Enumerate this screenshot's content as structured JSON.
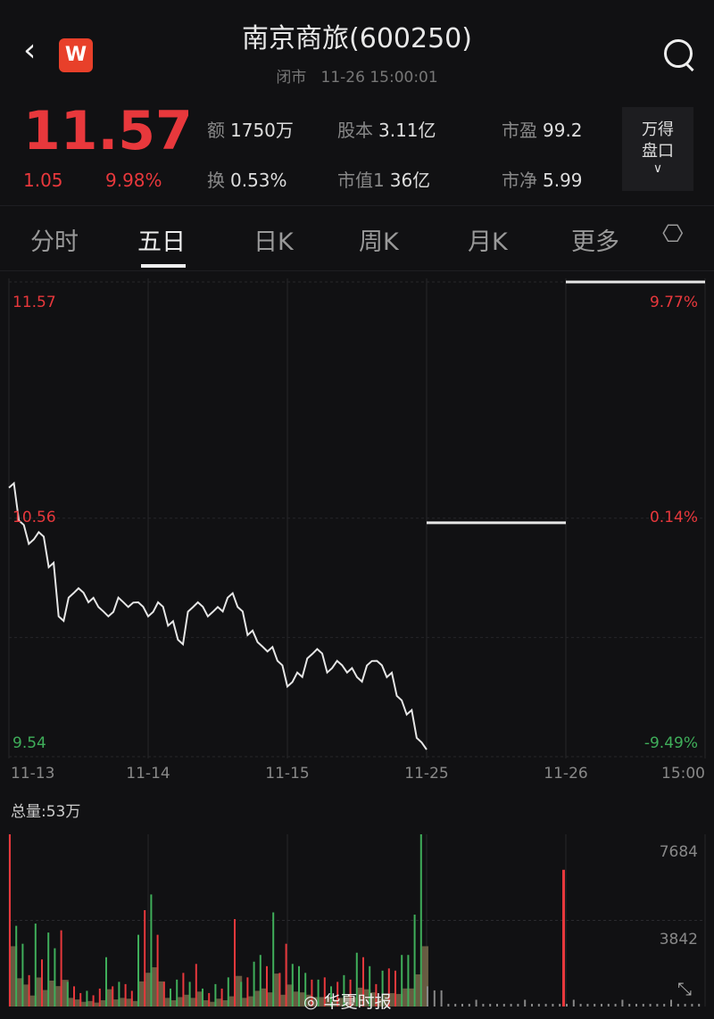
{
  "header": {
    "title": "南京商旅(600250)",
    "status": "闭市",
    "datetime": "11-26 15:00:01",
    "logo": "W"
  },
  "quote": {
    "price": "11.57",
    "change": "1.05",
    "change_pct": "9.98%",
    "stats": [
      {
        "k": "额",
        "v": "1750万"
      },
      {
        "k": "股本",
        "v": "3.11亿"
      },
      {
        "k": "市盈",
        "v": "99.2"
      },
      {
        "k": "换",
        "v": "0.53%"
      },
      {
        "k": "市值1",
        "v": "36亿"
      },
      {
        "k": "市净",
        "v": "5.99"
      }
    ],
    "wind_label_1": "万得",
    "wind_label_2": "盘口"
  },
  "tabs": [
    {
      "label": "分时"
    },
    {
      "label": "五日",
      "active": true
    },
    {
      "label": "日K"
    },
    {
      "label": "周K"
    },
    {
      "label": "月K"
    },
    {
      "label": "更多"
    }
  ],
  "colors": {
    "up": "#e8383c",
    "down": "#3fae5a",
    "line": "#e6e6e6",
    "bg": "#111113"
  },
  "chart_data": [
    {
      "type": "line",
      "days": [
        "11-13",
        "11-14",
        "11-15",
        "11-25",
        "11-26"
      ],
      "x_end_label": "15:00",
      "y_left": [
        "11.57",
        "10.56",
        "9.54"
      ],
      "y_right": [
        "9.77%",
        "0.14%",
        "-9.49%"
      ],
      "ylim": [
        9.54,
        11.57
      ],
      "series_first_three_days": [
        10.69,
        10.55,
        10.45,
        10.5,
        10.35,
        10.14,
        10.22,
        10.26,
        10.2,
        10.18,
        10.14,
        10.22,
        10.18,
        10.2,
        10.14,
        10.2,
        10.1,
        10.04,
        10.16,
        10.2,
        10.14,
        10.18,
        10.22,
        10.18,
        10.06,
        10.03,
        9.99,
        9.95,
        9.84,
        9.9,
        9.96,
        10.0,
        9.9,
        9.95,
        9.9,
        9.88,
        9.93,
        9.95,
        9.88,
        9.8,
        9.72,
        9.62,
        9.57
      ],
      "day4_flat": 10.54,
      "day5_flat": 11.57
    },
    {
      "type": "bar",
      "label": "总量:53万",
      "y_ticks": [
        "7684",
        "3842"
      ],
      "ylim": [
        0,
        7684
      ],
      "values_first_three_days": [
        7684,
        3600,
        2800,
        1400,
        3700,
        2100,
        3300,
        2600,
        3400,
        1100,
        900,
        600,
        700,
        500,
        800,
        2200,
        900,
        1100,
        1000,
        700,
        3200,
        4300,
        5000,
        3200,
        1100,
        800,
        1200,
        1500,
        1100,
        1900,
        800,
        600,
        1000,
        800,
        1300,
        3900,
        1100,
        1300,
        2000,
        2300,
        1800,
        4200,
        1500,
        2800,
        1900,
        1800,
        1500,
        1200,
        1200,
        1300,
        900,
        1100,
        1400,
        1200,
        2400,
        2200,
        1800,
        1000,
        1600,
        1700,
        1600,
        2300,
        2300,
        4100,
        7684
      ],
      "colors_first_three_days": "rggrgrggrgrrgrrgrgrrgrgrrggrgrgrgrgrgrggrgrrgggrgrgrgrgrgrgrrgg",
      "day5_open_volume": 6100
    }
  ],
  "watermark": "华夏时报"
}
